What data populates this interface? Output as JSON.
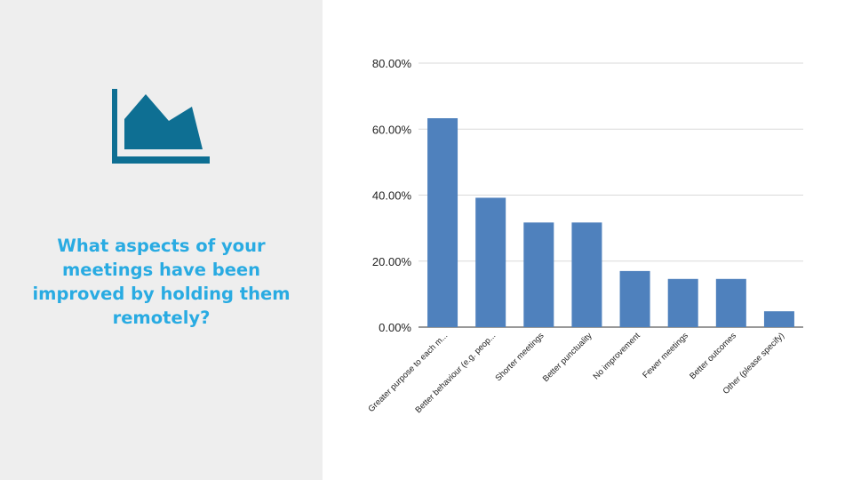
{
  "slide": {
    "question": "What aspects of your meetings have been improved by holding them remotely?",
    "logo_icon": "area-chart-icon",
    "accent_color": "#29abe2",
    "logo_color": "#0e6f93"
  },
  "chart_data": {
    "type": "bar",
    "categories": [
      "Greater purpose to each m...",
      "Better behaviour (e.g. peop...",
      "Shorter meetings",
      "Better punctuality",
      "No improvement",
      "Fewer meetings",
      "Better outcomes",
      "Other (please specify)"
    ],
    "values": [
      63.3,
      39.2,
      31.7,
      31.7,
      17.0,
      14.6,
      14.6,
      4.8
    ],
    "yticks": [
      "0.00%",
      "20.00%",
      "40.00%",
      "60.00%",
      "80.00%"
    ],
    "ylim": [
      0,
      80
    ],
    "grid": true,
    "bar_color": "#4f81bd",
    "title": "",
    "xlabel": "",
    "ylabel": ""
  }
}
